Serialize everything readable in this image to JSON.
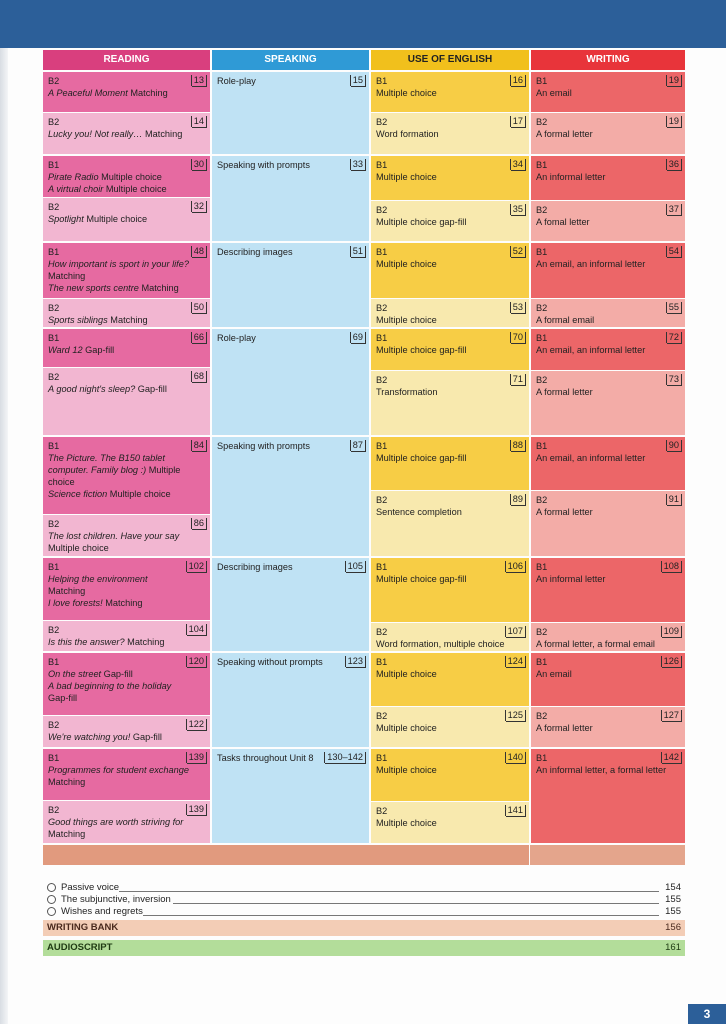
{
  "headers": {
    "reading": "READING",
    "speaking": "SPEAKING",
    "use_of_english": "USE OF ENGLISH",
    "writing": "WRITING"
  },
  "units": [
    {
      "reading": [
        {
          "level": "B2",
          "text": [
            {
              "t": "A Peaceful Moment",
              "i": true
            },
            {
              "t": " Matching",
              "i": false
            }
          ],
          "page": "13"
        },
        {
          "level": "B2",
          "text": [
            {
              "t": "Lucky you! Not really…",
              "i": true
            },
            {
              "t": " Matching",
              "i": false
            }
          ],
          "page": "14"
        }
      ],
      "speaking": {
        "text": "Role-play",
        "page": "15"
      },
      "use": [
        {
          "level": "B1",
          "text": "Multiple choice",
          "page": "16"
        },
        {
          "level": "B2",
          "text": "Word formation",
          "page": "17"
        }
      ],
      "writing": [
        {
          "level": "B1",
          "text": "An email",
          "page": "19"
        },
        {
          "level": "B2",
          "text": "A formal letter",
          "page": "19"
        }
      ]
    },
    {
      "reading": [
        {
          "level": "B1",
          "text": [
            {
              "t": "Pirate Radio",
              "i": true
            },
            {
              "t": " Multiple choice",
              "i": false
            },
            {
              "br": true
            },
            {
              "t": "A virtual choir",
              "i": true
            },
            {
              "t": " Multiple choice",
              "i": false
            }
          ],
          "page": "30"
        },
        {
          "level": "B2",
          "text": [
            {
              "t": "Spotlight",
              "i": true
            },
            {
              "t": " Multiple choice",
              "i": false
            }
          ],
          "page": "32"
        }
      ],
      "speaking": {
        "text": "Speaking with prompts",
        "page": "33"
      },
      "use": [
        {
          "level": "B1",
          "text": "Multiple choice",
          "page": "34"
        },
        {
          "level": "B2",
          "text": "Multiple choice gap-fill",
          "page": "35"
        }
      ],
      "writing": [
        {
          "level": "B1",
          "text": "An informal letter",
          "page": "36"
        },
        {
          "level": "B2",
          "text": "A fomal letter",
          "page": "37"
        }
      ]
    },
    {
      "reading": [
        {
          "level": "B1",
          "text": [
            {
              "t": "How important is sport in your life?",
              "i": true
            },
            {
              "br": true
            },
            {
              "t": "Matching",
              "i": false
            },
            {
              "br": true
            },
            {
              "t": "The new sports centre",
              "i": true
            },
            {
              "t": " Matching",
              "i": false
            }
          ],
          "page": "48"
        },
        {
          "level": "B2",
          "text": [
            {
              "t": "Sports siblings",
              "i": true
            },
            {
              "t": " Matching",
              "i": false
            }
          ],
          "page": "50"
        }
      ],
      "speaking": {
        "text": "Describing images",
        "page": "51"
      },
      "use": [
        {
          "level": "B1",
          "text": "Multiple choice",
          "page": "52"
        },
        {
          "level": "B2",
          "text": "Multiple choice",
          "page": "53"
        }
      ],
      "writing": [
        {
          "level": "B1",
          "text": "An email, an informal letter",
          "page": "54"
        },
        {
          "level": "B2",
          "text": "A formal email",
          "page": "55"
        }
      ]
    },
    {
      "reading": [
        {
          "level": "B1",
          "text": [
            {
              "t": "Ward 12",
              "i": true
            },
            {
              "t": " Gap-fill",
              "i": false
            }
          ],
          "page": "66"
        },
        {
          "level": "B2",
          "text": [
            {
              "t": "A good night's sleep?",
              "i": true
            },
            {
              "t": " Gap-fill",
              "i": false
            }
          ],
          "page": "68"
        }
      ],
      "speaking": {
        "text": "Role-play",
        "page": "69"
      },
      "use": [
        {
          "level": "B1",
          "text": "Multiple choice gap-fill",
          "page": "70"
        },
        {
          "level": "B2",
          "text": "Transformation",
          "page": "71"
        }
      ],
      "writing": [
        {
          "level": "B1",
          "text": "An email, an informal letter",
          "page": "72"
        },
        {
          "level": "B2",
          "text": "A formal letter",
          "page": "73"
        }
      ]
    },
    {
      "reading": [
        {
          "level": "B1",
          "text": [
            {
              "t": "The Picture. The B150 tablet computer. Family blog :)",
              "i": true
            },
            {
              "t": " Multiple choice",
              "i": false
            },
            {
              "br": true
            },
            {
              "t": "Science fiction",
              "i": true
            },
            {
              "t": " Multiple choice",
              "i": false
            }
          ],
          "page": "84"
        },
        {
          "level": "B2",
          "text": [
            {
              "t": "The lost children. Have your say",
              "i": true
            },
            {
              "br": true
            },
            {
              "t": "Multiple choice",
              "i": false
            }
          ],
          "page": "86"
        }
      ],
      "speaking": {
        "text": "Speaking with prompts",
        "page": "87"
      },
      "use": [
        {
          "level": "B1",
          "text": "Multiple choice gap-fill",
          "page": "88"
        },
        {
          "level": "B2",
          "text": "Sentence completion",
          "page": "89"
        }
      ],
      "writing": [
        {
          "level": "B1",
          "text": "An email, an informal letter",
          "page": "90"
        },
        {
          "level": "B2",
          "text": "A formal letter",
          "page": "91"
        }
      ]
    },
    {
      "reading": [
        {
          "level": "B1",
          "text": [
            {
              "t": "Helping the environment",
              "i": true
            },
            {
              "br": true
            },
            {
              "t": "Matching",
              "i": false
            },
            {
              "br": true
            },
            {
              "t": "I love forests!",
              "i": true
            },
            {
              "t": " Matching",
              "i": false
            }
          ],
          "page": "102"
        },
        {
          "level": "B2",
          "text": [
            {
              "t": "Is this the answer?",
              "i": true
            },
            {
              "t": " Matching",
              "i": false
            }
          ],
          "page": "104"
        }
      ],
      "speaking": {
        "text": "Describing images",
        "page": "105"
      },
      "use": [
        {
          "level": "B1",
          "text": "Multiple choice gap-fill",
          "page": "106"
        },
        {
          "level": "B2",
          "text": "Word formation, multiple choice",
          "page": "107"
        }
      ],
      "writing": [
        {
          "level": "B1",
          "text": "An informal letter",
          "page": "108"
        },
        {
          "level": "B2",
          "text": "A formal letter, a formal email",
          "page": "109"
        }
      ]
    },
    {
      "reading": [
        {
          "level": "B1",
          "text": [
            {
              "t": "On the street",
              "i": true
            },
            {
              "t": " Gap-fill",
              "i": false
            },
            {
              "br": true
            },
            {
              "t": "A bad beginning to the holiday",
              "i": true
            },
            {
              "br": true
            },
            {
              "t": "Gap-fill",
              "i": false
            }
          ],
          "page": "120"
        },
        {
          "level": "B2",
          "text": [
            {
              "t": "We're watching you!",
              "i": true
            },
            {
              "t": " Gap-fill",
              "i": false
            }
          ],
          "page": "122"
        }
      ],
      "speaking": {
        "text": "Speaking without prompts",
        "page": "123"
      },
      "use": [
        {
          "level": "B1",
          "text": "Multiple choice",
          "page": "124"
        },
        {
          "level": "B2",
          "text": "Multiple choice",
          "page": "125"
        }
      ],
      "writing": [
        {
          "level": "B1",
          "text": "An email",
          "page": "126"
        },
        {
          "level": "B2",
          "text": "A formal letter",
          "page": "127"
        }
      ]
    },
    {
      "reading": [
        {
          "level": "B1",
          "text": [
            {
              "t": "Programmes for student exchange",
              "i": true
            },
            {
              "br": true
            },
            {
              "t": "Matching",
              "i": false
            }
          ],
          "page": "139"
        },
        {
          "level": "B2",
          "text": [
            {
              "t": "Good things are worth striving for",
              "i": true
            },
            {
              "br": true
            },
            {
              "t": "Matching",
              "i": false
            }
          ],
          "page": "139"
        }
      ],
      "speaking": {
        "text": "Tasks throughout Unit 8",
        "page": "130–142"
      },
      "use": [
        {
          "level": "B1",
          "text": "Multiple choice",
          "page": "140"
        },
        {
          "level": "B2",
          "text": "Multiple choice",
          "page": "141"
        }
      ],
      "writing": [
        {
          "level": "B1",
          "text": "An informal letter, a formal letter",
          "page": "142"
        },
        null
      ]
    }
  ],
  "grammar_list": [
    {
      "label": "Passive voice",
      "page": "154"
    },
    {
      "label": "The subjunctive, inversion",
      "page": "155"
    },
    {
      "label": "Wishes and regrets",
      "page": "155"
    }
  ],
  "writing_bank": {
    "label": "WRITING BANK",
    "page": "156"
  },
  "audioscript": {
    "label": "AUDIOSCRIPT",
    "page": "161"
  },
  "page_number": "3"
}
